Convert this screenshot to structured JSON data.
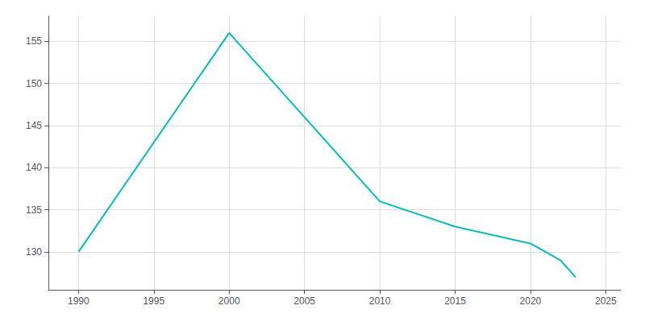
{
  "chart_data": {
    "type": "line",
    "x": [
      1990,
      2000,
      2010,
      2015,
      2020,
      2022,
      2023
    ],
    "values": [
      130,
      156,
      136,
      133,
      131,
      129,
      127
    ],
    "color": "#00BFBF",
    "xlim": [
      1988,
      2026
    ],
    "ylim": [
      125.5,
      158
    ],
    "xticks": [
      1990,
      1995,
      2000,
      2005,
      2010,
      2015,
      2020,
      2025
    ],
    "yticks": [
      130,
      135,
      140,
      145,
      150,
      155
    ],
    "grid": true
  }
}
